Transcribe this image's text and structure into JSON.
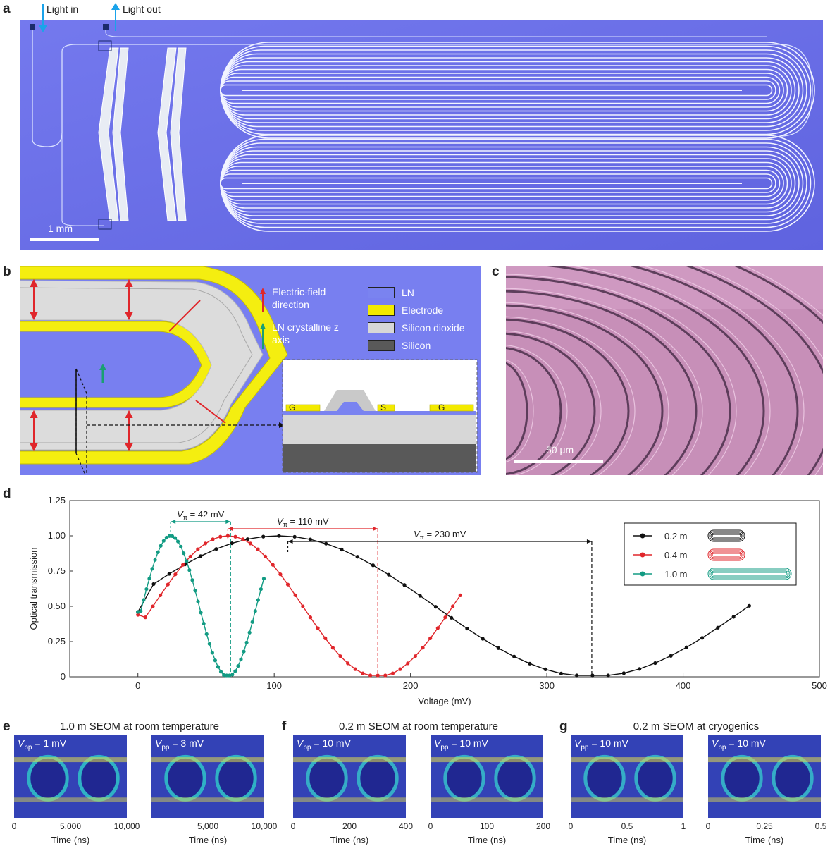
{
  "panel_labels": {
    "a": "a",
    "b": "b",
    "c": "c",
    "d": "d",
    "e": "e",
    "f": "f",
    "g": "g"
  },
  "panel_a": {
    "light_in": "Light in",
    "light_out": "Light out",
    "scale": "1 mm"
  },
  "panel_b": {
    "arrow_legend": [
      {
        "label": "Electric-field direction",
        "color": "#e0262b"
      },
      {
        "label": "LN crystalline z axis",
        "color": "#1a9f73"
      }
    ],
    "material_legend": [
      {
        "label": "LN",
        "color": "#7a83f0"
      },
      {
        "label": "Electrode",
        "color": "#f3ea00"
      },
      {
        "label": "Silicon dioxide",
        "color": "#d7d7d7"
      },
      {
        "label": "Silicon",
        "color": "#595959"
      }
    ],
    "cross_section": {
      "g1": "G",
      "s": "S",
      "g2": "G"
    }
  },
  "panel_c": {
    "scale": "50 μm"
  },
  "chart_data": {
    "type": "line",
    "xlabel": "Voltage (mV)",
    "ylabel": "Optical transmission",
    "xlim": [
      -50,
      500
    ],
    "ylim": [
      0,
      1.25
    ],
    "xticks": [
      0,
      100,
      200,
      300,
      400,
      500
    ],
    "yticks": [
      "0",
      "0.25",
      "0.50",
      "0.75",
      "1.00",
      "1.25"
    ],
    "grid": false,
    "legend_position": "top-right",
    "series": [
      {
        "name": "0.2 m",
        "color": "#111111",
        "vpi": 230,
        "peak_x": 103,
        "min_x": 333,
        "x_end": 455,
        "offset": 0.46
      },
      {
        "name": "0.4 m",
        "color": "#e0262b",
        "vpi": 110,
        "peak_x": 66,
        "min_x": 176,
        "x_end": 237,
        "offset": 0.44
      },
      {
        "name": "1.0 m",
        "color": "#129b83",
        "vpi": 42,
        "peak_x": 24,
        "min_x": 68,
        "x_end": 93,
        "offset": 0.46
      }
    ],
    "annotations": [
      {
        "text_v": "V",
        "text_sub": "π",
        "text_val": " = 42 mV",
        "color": "#129b83",
        "from": 24,
        "to": 68,
        "y": 1.1
      },
      {
        "text_v": "V",
        "text_sub": "π",
        "text_val": " = 110 mV",
        "color": "#e0262b",
        "from": 66,
        "to": 176,
        "y": 1.05
      },
      {
        "text_v": "V",
        "text_sub": "π",
        "text_val": " = 230 mV",
        "color": "#111111",
        "from": 110,
        "to": 333,
        "y": 0.96
      }
    ]
  },
  "eye_panels": [
    {
      "title": "1.0 m SEOM at room temperature",
      "plots": [
        {
          "vpp": "1 mV"
        },
        {
          "vpp": "3 mV"
        }
      ],
      "ticks": [
        [
          "0",
          "5,000",
          "10,000"
        ],
        [
          "5,000",
          "10,000"
        ]
      ],
      "xlabel": "Time (ns)"
    },
    {
      "title": "0.2 m SEOM at room temperature",
      "plots": [
        {
          "vpp": "10 mV"
        },
        {
          "vpp": "10 mV"
        }
      ],
      "ticks": [
        [
          "0",
          "200",
          "400"
        ],
        [
          "0",
          "100",
          "200"
        ]
      ],
      "xlabel": "Time (ns)"
    },
    {
      "title": "0.2 m SEOM at cryogenics",
      "plots": [
        {
          "vpp": "10 mV"
        },
        {
          "vpp": "10 mV"
        }
      ],
      "ticks": [
        [
          "0",
          "0.5",
          "1"
        ],
        [
          "0",
          "0.25",
          "0.5"
        ]
      ],
      "xlabel": "Time (ns)"
    }
  ],
  "vpp_prefix": "V",
  "vpp_sub": "pp",
  "vpp_eq": " = "
}
